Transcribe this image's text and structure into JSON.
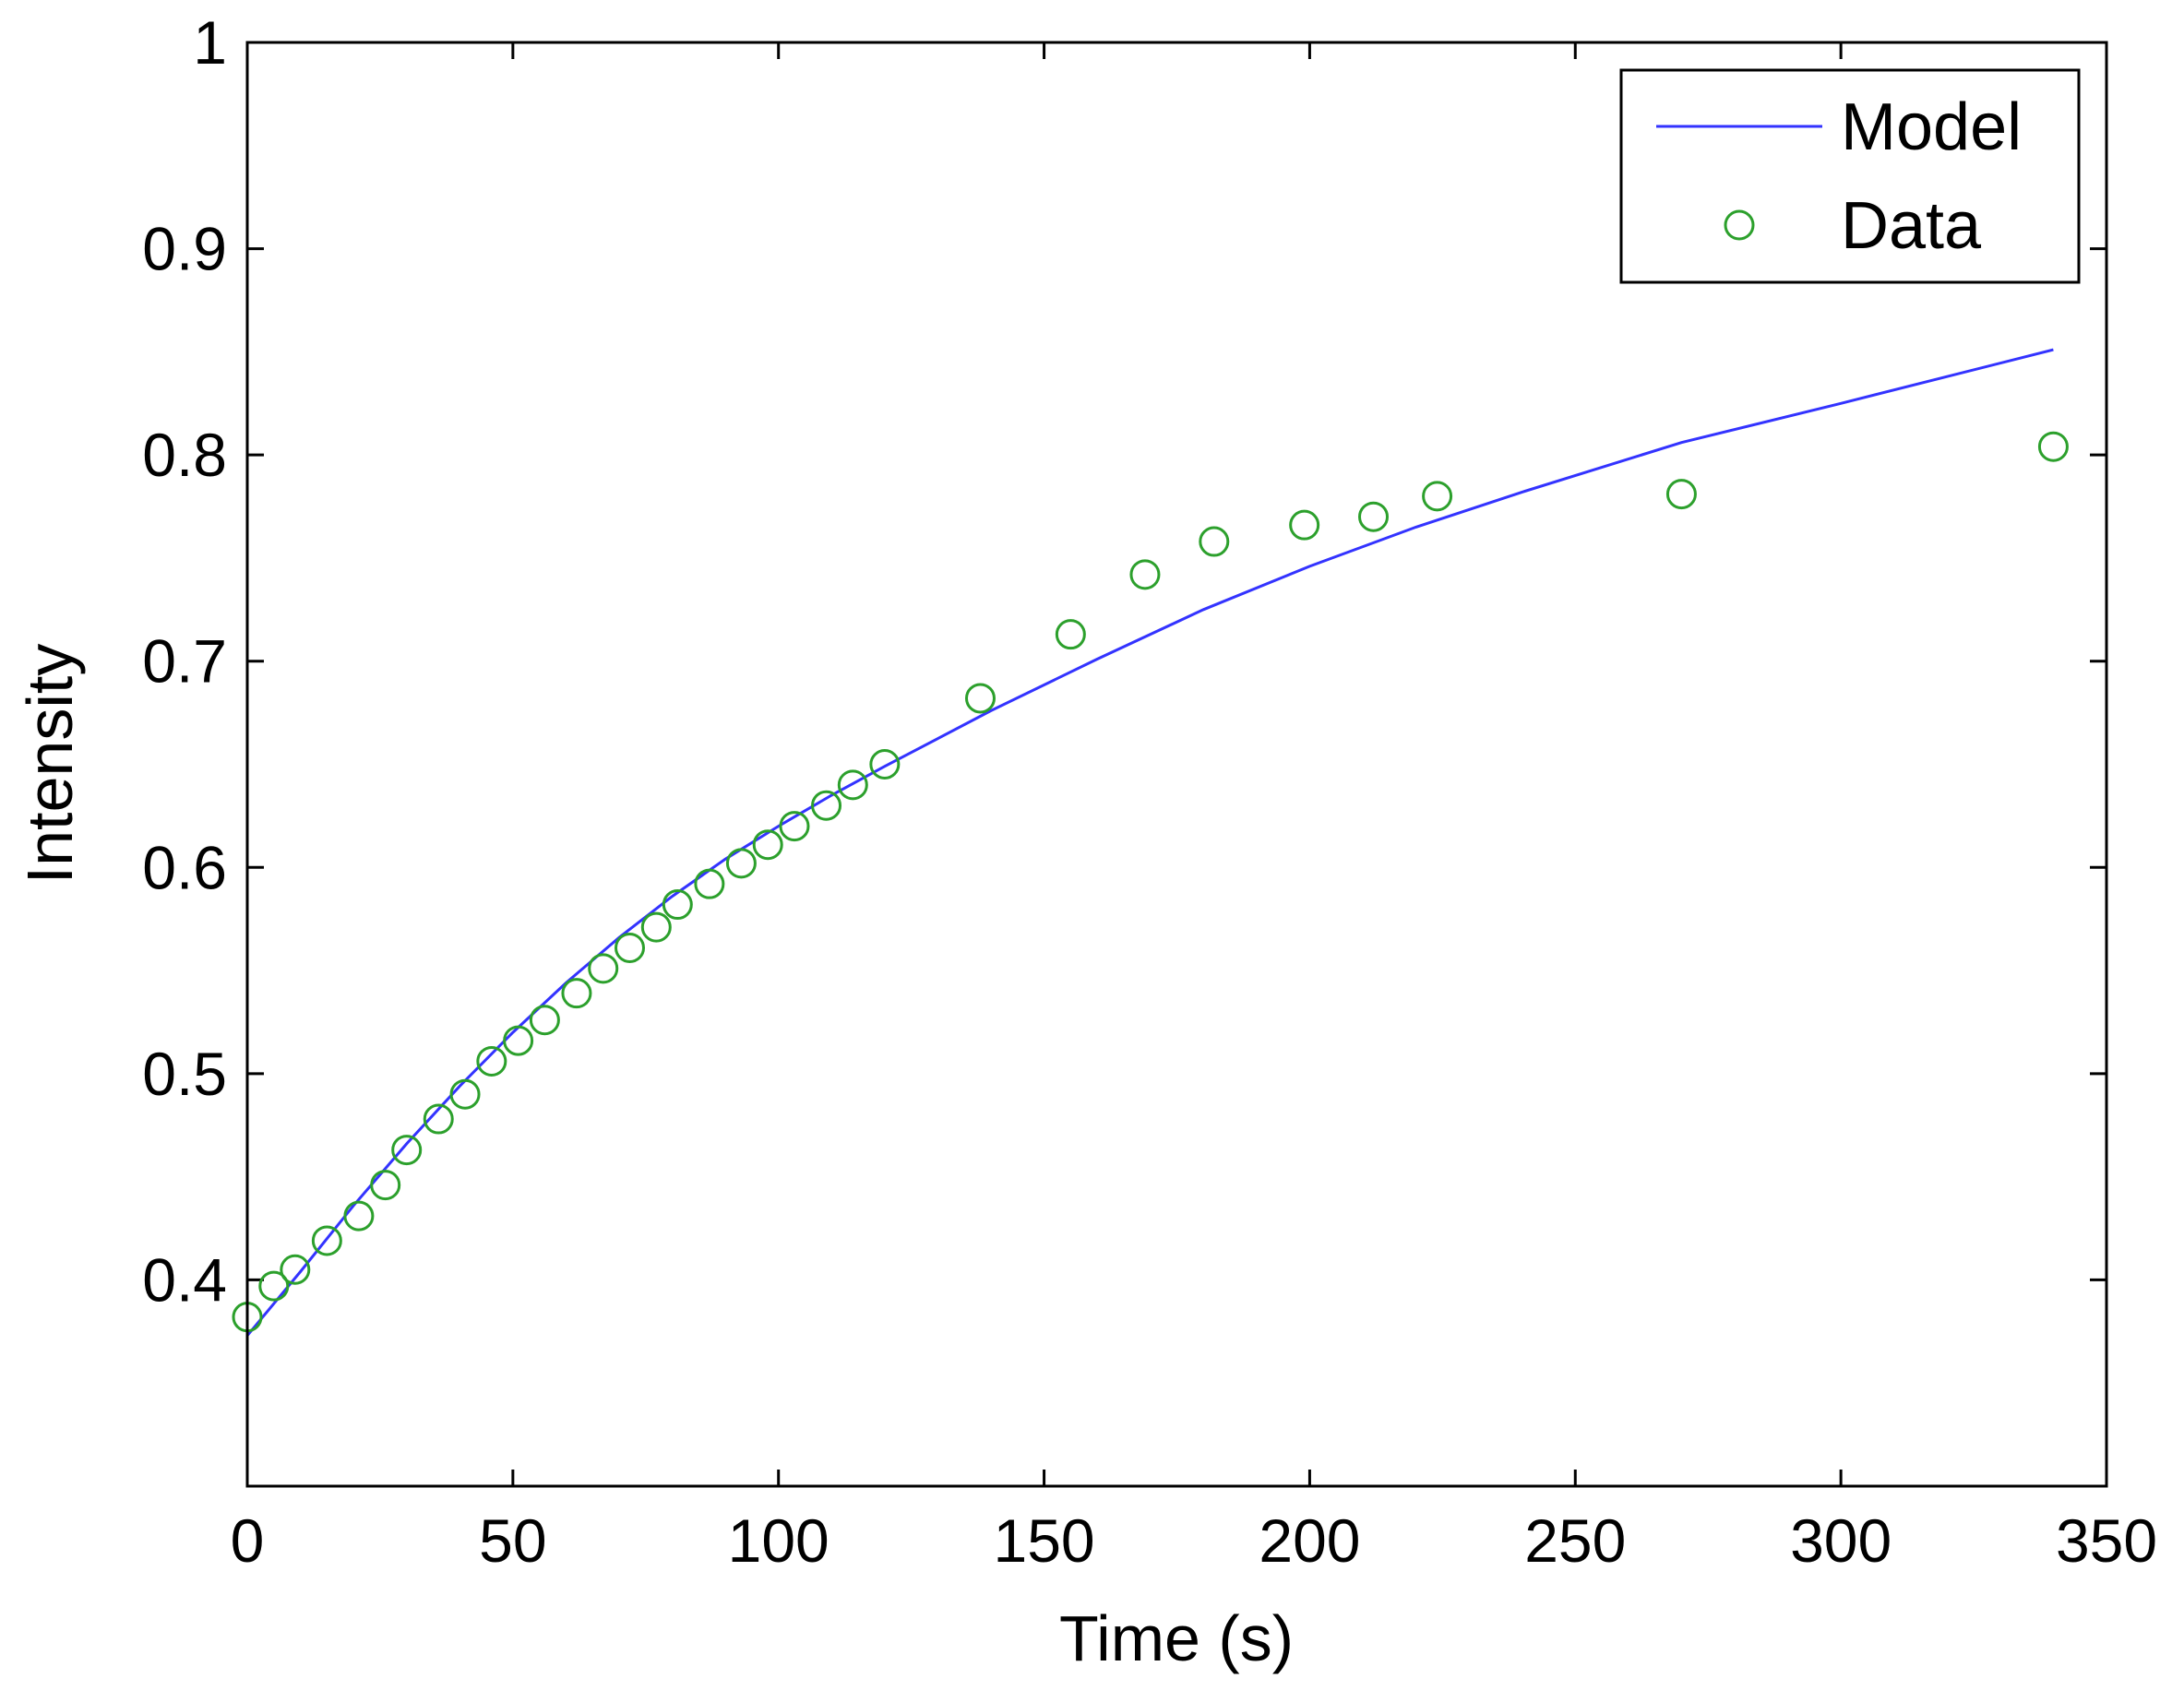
{
  "chart_data": {
    "type": "scatter",
    "title": "",
    "xlabel": "Time (s)",
    "ylabel": "Intensity",
    "xlim": [
      0,
      350
    ],
    "ylim": [
      0.3,
      1.0
    ],
    "x_ticks": [
      0,
      50,
      100,
      150,
      200,
      250,
      300,
      350
    ],
    "y_ticks": [
      0.4,
      0.5,
      0.6,
      0.7,
      0.8,
      0.9,
      1.0
    ],
    "x_tick_labels": [
      "0",
      "50",
      "100",
      "150",
      "200",
      "250",
      "300",
      "350"
    ],
    "y_tick_labels": [
      "0.4",
      "0.5",
      "0.6",
      "0.7",
      "0.8",
      "0.9",
      "1"
    ],
    "grid": false,
    "legend": {
      "position": "top-right",
      "entries": [
        {
          "label": "Model",
          "marker": "line",
          "color": "#3333ff"
        },
        {
          "label": "Data",
          "marker": "circle",
          "color": "#2ca02c"
        }
      ]
    },
    "series": [
      {
        "name": "Model",
        "kind": "line",
        "color": "#3333ff",
        "x": [
          0,
          10,
          20,
          30,
          40,
          50,
          60,
          70,
          80,
          90,
          100,
          110,
          120,
          140,
          160,
          180,
          200,
          220,
          240,
          270,
          300,
          340
        ],
        "y": [
          0.373,
          0.404,
          0.436,
          0.466,
          0.494,
          0.52,
          0.544,
          0.566,
          0.586,
          0.604,
          0.62,
          0.635,
          0.649,
          0.676,
          0.701,
          0.725,
          0.746,
          0.765,
          0.782,
          0.806,
          0.825,
          0.851
        ]
      },
      {
        "name": "Data",
        "kind": "scatter",
        "color": "#2ca02c",
        "x": [
          0,
          5,
          9,
          15,
          21,
          26,
          30,
          36,
          41,
          46,
          51,
          56,
          62,
          67,
          72,
          77,
          81,
          87,
          93,
          98,
          103,
          109,
          114,
          120,
          138,
          155,
          169,
          182,
          199,
          212,
          224,
          270,
          340
        ],
        "y": [
          0.382,
          0.397,
          0.405,
          0.419,
          0.431,
          0.446,
          0.463,
          0.478,
          0.49,
          0.506,
          0.516,
          0.526,
          0.539,
          0.551,
          0.561,
          0.571,
          0.582,
          0.592,
          0.602,
          0.611,
          0.62,
          0.63,
          0.64,
          0.65,
          0.682,
          0.713,
          0.742,
          0.758,
          0.766,
          0.77,
          0.78,
          0.781,
          0.804
        ]
      }
    ]
  }
}
